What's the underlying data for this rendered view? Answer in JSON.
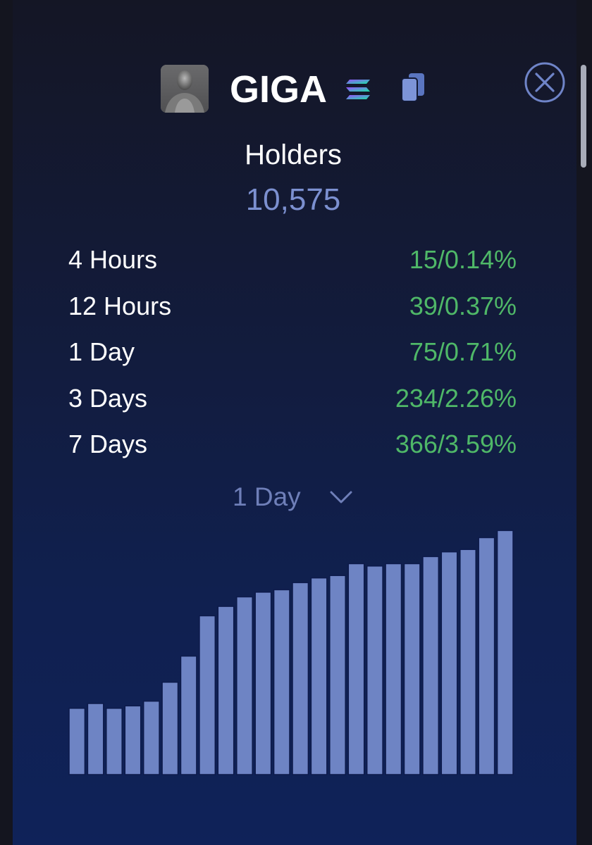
{
  "token": {
    "name": "GIGA",
    "avatar_icon": "token-avatar-portrait",
    "chain_icon": "solana-icon",
    "copy_icon": "copy-icon",
    "close_icon": "close-icon"
  },
  "holders": {
    "label": "Holders",
    "value": "10,575"
  },
  "stats": [
    {
      "label": "4 Hours",
      "value": "15/0.14%"
    },
    {
      "label": "12 Hours",
      "value": "39/0.37%"
    },
    {
      "label": "1 Day",
      "value": "75/0.71%"
    },
    {
      "label": "3 Days",
      "value": "234/2.26%"
    },
    {
      "label": "7 Days",
      "value": "366/3.59%"
    }
  ],
  "range_select": {
    "selected": "1 Day"
  },
  "colors": {
    "accent": "#7c90d0",
    "positive": "#4fb868",
    "bar_fill": "#6e84c4",
    "bar_stroke": "#0d1a4a"
  },
  "chart_data": {
    "type": "bar",
    "title": "",
    "xlabel": "",
    "ylabel": "",
    "values": [
      10500,
      10502,
      10500,
      10501,
      10503,
      10511,
      10522,
      10539,
      10543,
      10547,
      10549,
      10550,
      10553,
      10555,
      10556,
      10561,
      10560,
      10561,
      10561,
      10564,
      10566,
      10567,
      10572,
      10575
    ],
    "ylim": [
      10472,
      10576
    ]
  }
}
